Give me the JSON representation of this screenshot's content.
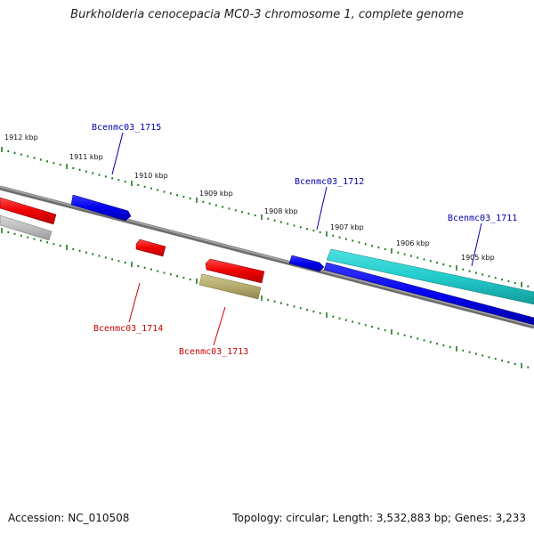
{
  "title": "Burkholderia cenocepacia MC0-3 chromosome 1, complete genome",
  "footer": {
    "accession": "Accession: NC_010508",
    "summary": "Topology: circular; Length: 3,532,883 bp; Genes: 3,233"
  },
  "colors": {
    "backbone": "#7a7a7a",
    "ticks": "#1a7a1a",
    "forward_gene": "#0000ee",
    "reverse_gene": "#ee0000",
    "feature_cyan": "#22cccc",
    "feature_gray": "#bdbdbd",
    "feature_olive": "#b5ab6e",
    "forward_label": "#0000aa",
    "reverse_label": "#cc0000"
  },
  "scale_labels": [
    "1912 kbp",
    "1911 kbp",
    "1910 kbp",
    "1909 kbp",
    "1908 kbp",
    "1907 kbp",
    "1906 kbp",
    "1905 kbp"
  ],
  "gene_labels": {
    "g1715": "Bcenmc03_1715",
    "g1712": "Bcenmc03_1712",
    "g1711": "Bcenmc03_1711",
    "g1714": "Bcenmc03_1714",
    "g1713": "Bcenmc03_1713"
  }
}
